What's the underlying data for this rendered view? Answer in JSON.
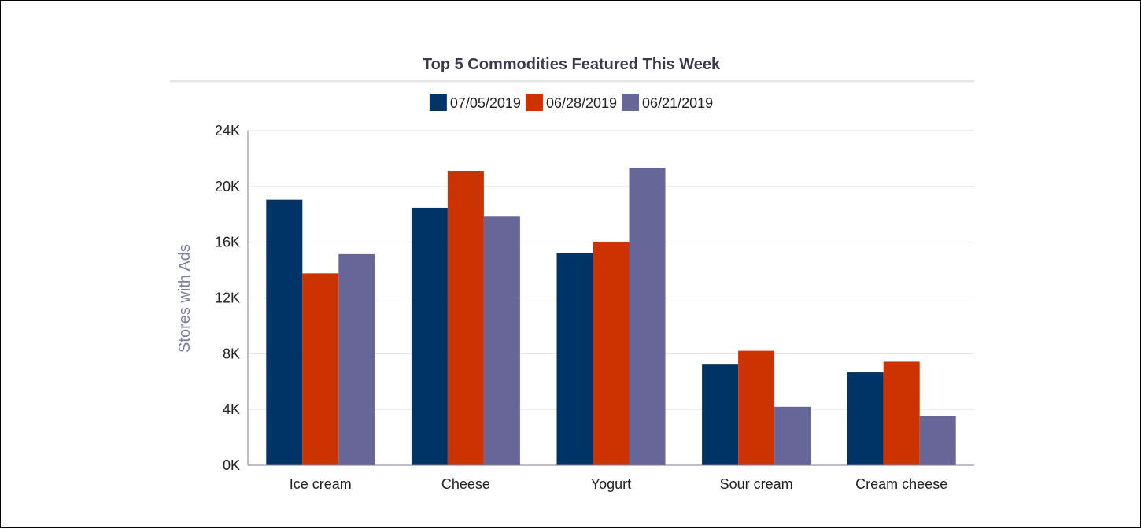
{
  "chart_data": {
    "type": "bar",
    "title": "Top 5 Commodities Featured This Week",
    "xlabel": "",
    "ylabel": "Stores with Ads",
    "categories": [
      "Ice cream",
      "Cheese",
      "Yogurt",
      "Sour cream",
      "Cream cheese"
    ],
    "series": [
      {
        "name": "07/05/2019",
        "color": "#003366",
        "values": [
          19050,
          18470,
          15220,
          7220,
          6660
        ]
      },
      {
        "name": "06/28/2019",
        "color": "#cc3300",
        "values": [
          13760,
          21120,
          16040,
          8210,
          7430
        ]
      },
      {
        "name": "06/21/2019",
        "color": "#666699",
        "values": [
          15140,
          17830,
          21340,
          4190,
          3520
        ]
      }
    ],
    "ylim": [
      0,
      24000
    ],
    "yticks": [
      0,
      4000,
      8000,
      12000,
      16000,
      20000,
      24000
    ],
    "ytick_labels": [
      "0K",
      "4K",
      "8K",
      "12K",
      "16K",
      "20K",
      "24K"
    ],
    "grid": true,
    "legend_position": "top-center"
  }
}
